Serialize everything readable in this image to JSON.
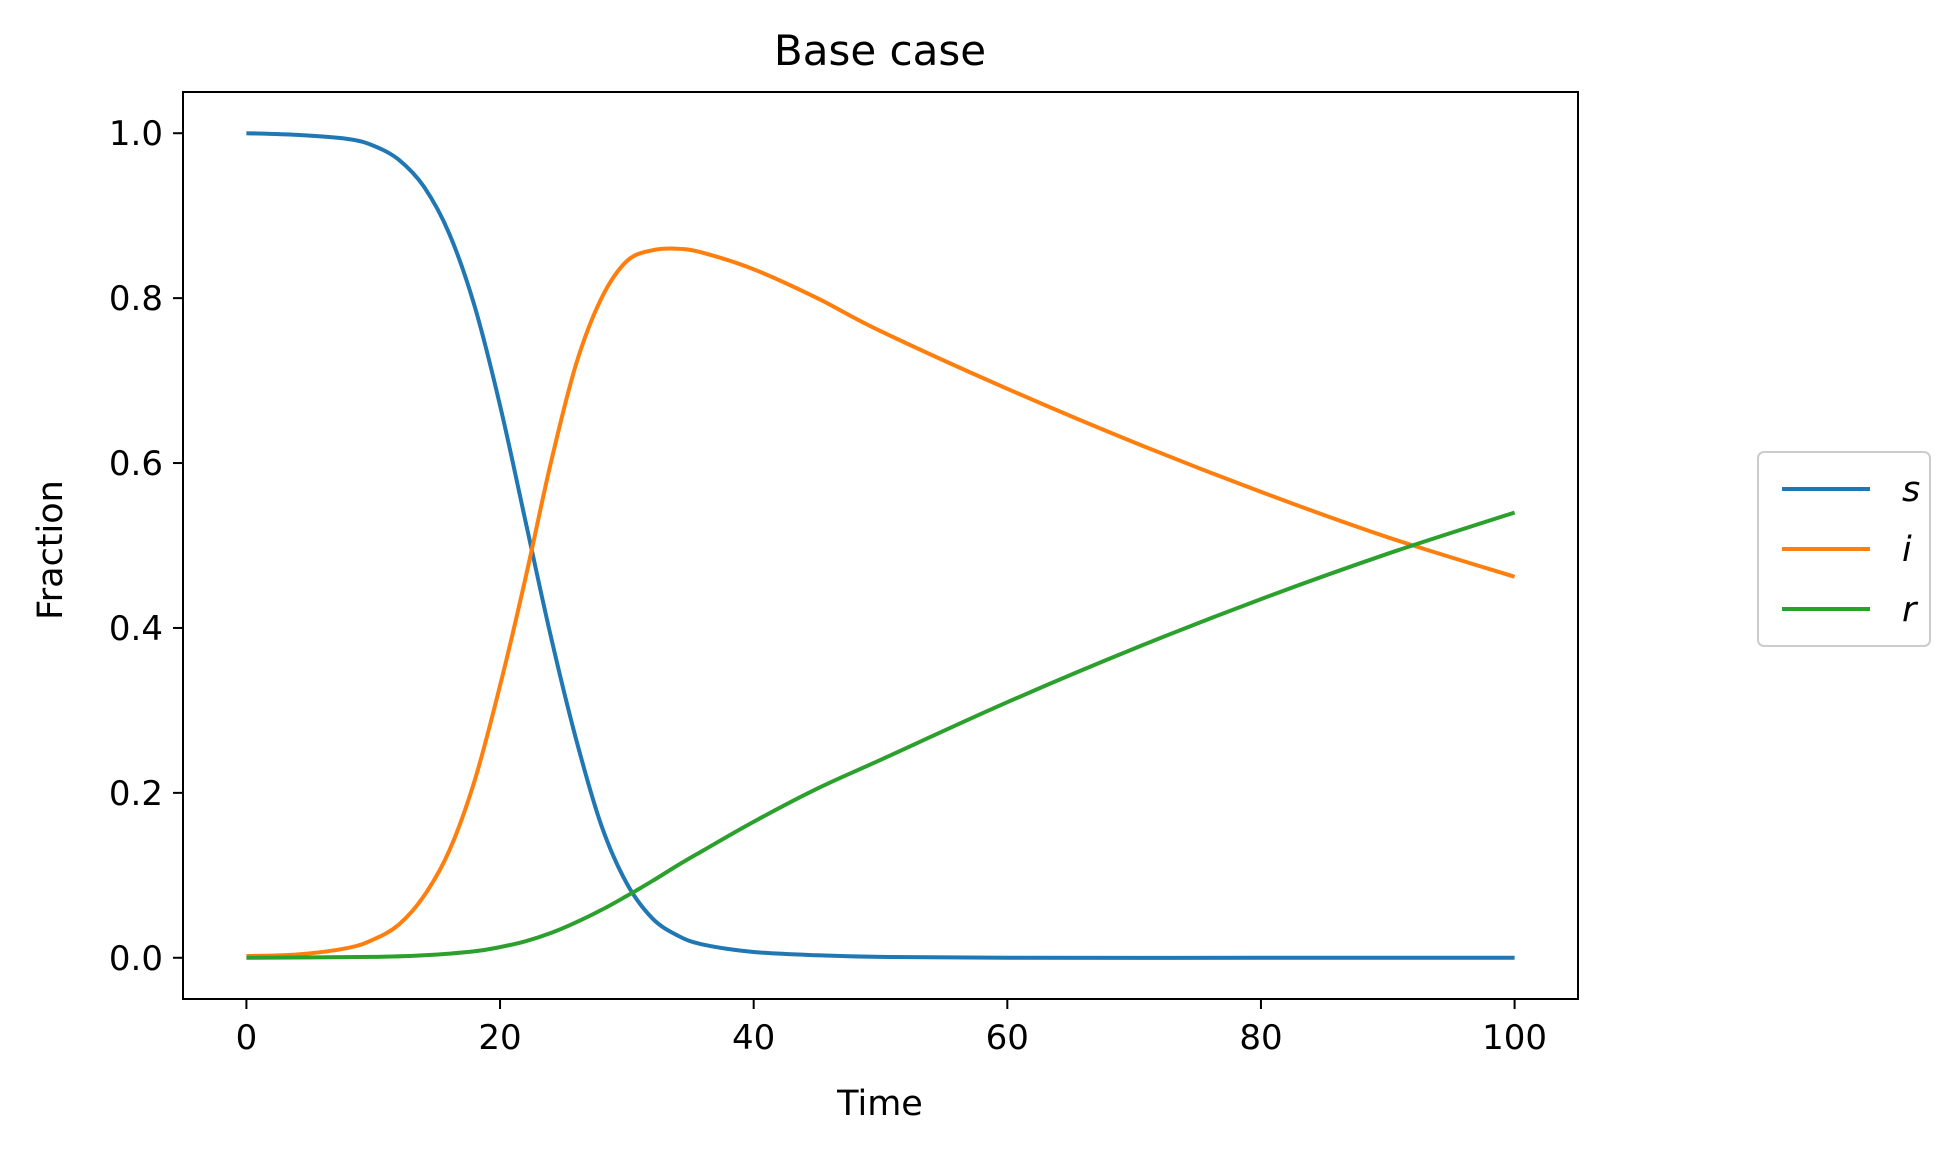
{
  "chart_data": {
    "type": "line",
    "title": "Base case",
    "xlabel": "Time",
    "ylabel": "Fraction",
    "xlim": [
      -5,
      105
    ],
    "ylim": [
      -0.05,
      1.05
    ],
    "xticks": [
      0,
      20,
      40,
      60,
      80,
      100
    ],
    "xtick_labels": [
      "0",
      "20",
      "40",
      "60",
      "80",
      "100"
    ],
    "yticks": [
      0.0,
      0.2,
      0.4,
      0.6,
      0.8,
      1.0
    ],
    "ytick_labels": [
      "0.0",
      "0.2",
      "0.4",
      "0.6",
      "0.8",
      "1.0"
    ],
    "grid": false,
    "legend_position": "outside-right",
    "series": [
      {
        "name": "s",
        "color": "#1f77b4",
        "x": [
          0,
          4,
          8,
          10,
          12,
          14,
          16,
          18,
          20,
          22,
          24,
          26,
          28,
          30,
          32,
          34,
          36,
          40,
          45,
          50,
          60,
          80,
          100
        ],
        "y": [
          1.0,
          0.998,
          0.993,
          0.985,
          0.968,
          0.935,
          0.878,
          0.79,
          0.67,
          0.53,
          0.39,
          0.265,
          0.16,
          0.09,
          0.048,
          0.027,
          0.016,
          0.007,
          0.003,
          0.001,
          0.0,
          0.0,
          0.0
        ]
      },
      {
        "name": "i",
        "color": "#ff7f0e",
        "x": [
          0,
          4,
          8,
          10,
          12,
          14,
          16,
          18,
          20,
          22,
          24,
          26,
          28,
          30,
          32,
          34,
          36,
          40,
          45,
          50,
          60,
          70,
          80,
          90,
          100
        ],
        "y": [
          0.002,
          0.004,
          0.012,
          0.022,
          0.04,
          0.075,
          0.13,
          0.215,
          0.33,
          0.46,
          0.6,
          0.72,
          0.8,
          0.845,
          0.858,
          0.86,
          0.855,
          0.835,
          0.8,
          0.76,
          0.69,
          0.625,
          0.565,
          0.51,
          0.462
        ]
      },
      {
        "name": "r",
        "color": "#2ca02c",
        "x": [
          0,
          10,
          14,
          18,
          20,
          22,
          24,
          26,
          28,
          30,
          32,
          34,
          36,
          40,
          45,
          50,
          60,
          70,
          80,
          90,
          100
        ],
        "y": [
          0.0,
          0.001,
          0.003,
          0.008,
          0.013,
          0.02,
          0.03,
          0.043,
          0.058,
          0.075,
          0.093,
          0.112,
          0.13,
          0.165,
          0.205,
          0.24,
          0.31,
          0.375,
          0.435,
          0.49,
          0.54
        ]
      }
    ]
  }
}
